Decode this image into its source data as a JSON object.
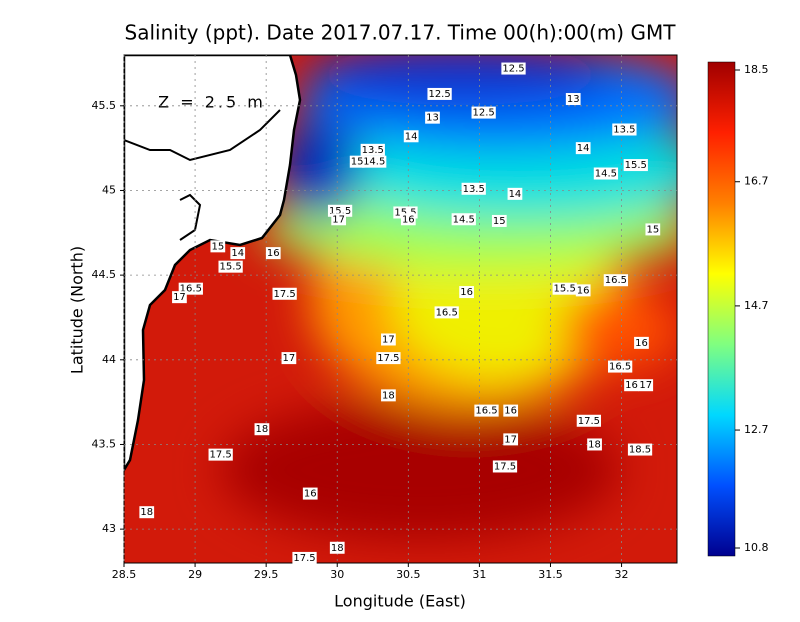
{
  "chart_data": {
    "type": "map",
    "title": "Salinity (ppt). Date 2017.07.17. Time 00(h):00(m) GMT",
    "annotation": "Z = 2.5 m",
    "x_label": "Longitude (East)",
    "y_label": "Latitude (North)",
    "xlim": [
      28.5,
      32.39
    ],
    "ylim": [
      42.8,
      45.8
    ],
    "xticks": [
      28.5,
      29,
      29.5,
      30,
      30.5,
      31,
      31.5,
      32
    ],
    "yticks": [
      43,
      43.5,
      44,
      44.5,
      45,
      45.5
    ],
    "grid": true,
    "colorbar_lim": [
      10.8,
      18.5
    ],
    "colorbar_ticks": [
      18.5,
      16.7,
      14.7,
      12.7,
      10.8
    ],
    "colormap": [
      "#00008f",
      "#0050ff",
      "#00d8ff",
      "#80ff80",
      "#ffff00",
      "#ff8000",
      "#ff2000",
      "#a00000"
    ],
    "contour_labels": {
      "values": [
        12.5,
        12.5,
        13,
        13,
        12.5,
        13.5,
        14,
        13.5,
        14.5,
        15,
        14,
        15.5,
        14.5,
        13.5,
        14,
        15.5,
        17,
        15.5,
        16,
        14.5,
        15,
        15,
        15,
        14,
        15.5,
        16,
        16.5,
        17,
        17.5,
        16,
        15.5,
        16,
        16.5,
        16.5,
        16,
        17,
        17,
        17.5,
        16.5,
        16,
        17,
        18,
        16.5,
        16,
        17.5,
        18,
        17,
        18,
        18.5,
        17.5,
        17.5,
        16,
        18,
        18,
        17.5
      ],
      "lon": [
        31.24,
        30.72,
        31.66,
        30.67,
        31.03,
        32.02,
        30.52,
        30.25,
        30.26,
        30.14,
        31.73,
        32.1,
        31.89,
        30.96,
        31.25,
        30.02,
        30.01,
        30.48,
        30.5,
        30.89,
        31.14,
        32.22,
        29.16,
        29.3,
        29.25,
        29.55,
        28.97,
        28.89,
        29.63,
        30.91,
        31.6,
        31.73,
        31.96,
        30.77,
        32.14,
        30.36,
        29.66,
        30.36,
        31.99,
        32.07,
        32.17,
        30.36,
        31.05,
        31.22,
        31.77,
        29.47,
        31.22,
        31.81,
        32.13,
        29.18,
        31.18,
        29.81,
        28.66,
        30.0,
        29.77
      ],
      "lat": [
        45.72,
        45.57,
        45.54,
        45.43,
        45.46,
        45.36,
        45.32,
        45.24,
        45.17,
        45.17,
        45.25,
        45.15,
        45.1,
        45.01,
        44.98,
        44.88,
        44.83,
        44.87,
        44.83,
        44.83,
        44.82,
        44.77,
        44.67,
        44.63,
        44.55,
        44.63,
        44.42,
        44.37,
        44.39,
        44.4,
        44.42,
        44.41,
        44.47,
        44.28,
        44.1,
        44.12,
        44.01,
        44.01,
        43.96,
        43.85,
        43.85,
        43.79,
        43.7,
        43.7,
        43.64,
        43.59,
        43.53,
        43.5,
        43.47,
        43.44,
        43.37,
        43.21,
        43.1,
        42.89,
        42.83
      ]
    }
  }
}
